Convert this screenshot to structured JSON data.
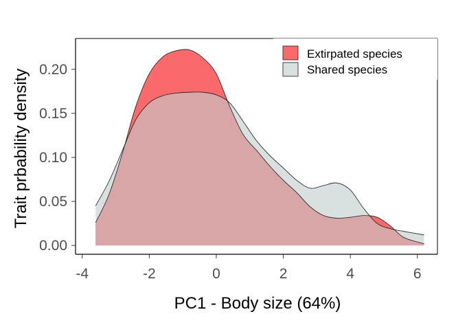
{
  "chart_data": {
    "type": "area",
    "title": "",
    "xlabel": "PC1 - Body size (64%)",
    "ylabel": "Trait prbability density",
    "xlim": [
      -4.2,
      6.6
    ],
    "ylim": [
      -0.01,
      0.235
    ],
    "x_ticks": [
      -4,
      -2,
      0,
      2,
      4,
      6
    ],
    "y_ticks": [
      0.0,
      0.05,
      0.1,
      0.15,
      0.2
    ],
    "x_tick_labels": [
      "-4",
      "-2",
      "0",
      "2",
      "4",
      "6"
    ],
    "y_tick_labels": [
      "0.00",
      "0.05",
      "0.10",
      "0.15",
      "0.20"
    ],
    "grid": false,
    "legend_position": "top-right",
    "series": [
      {
        "name": "Extirpated species",
        "fill": "#fb6a6a",
        "x": [
          -3.6,
          -3.2,
          -2.8,
          -2.4,
          -2.0,
          -1.6,
          -1.2,
          -0.8,
          -0.4,
          0.0,
          0.4,
          0.8,
          1.2,
          1.6,
          2.0,
          2.4,
          2.8,
          3.2,
          3.6,
          4.0,
          4.4,
          4.8,
          5.2,
          5.6,
          6.2
        ],
        "values": [
          0.026,
          0.058,
          0.105,
          0.158,
          0.195,
          0.214,
          0.221,
          0.222,
          0.213,
          0.195,
          0.158,
          0.126,
          0.108,
          0.09,
          0.074,
          0.06,
          0.044,
          0.034,
          0.031,
          0.032,
          0.034,
          0.032,
          0.022,
          0.009,
          0.002
        ]
      },
      {
        "name": "Shared species",
        "fill": "#d8e0e0",
        "x": [
          -3.6,
          -3.2,
          -2.8,
          -2.4,
          -2.0,
          -1.6,
          -1.2,
          -0.8,
          -0.4,
          0.0,
          0.4,
          0.8,
          1.2,
          1.6,
          2.0,
          2.4,
          2.8,
          3.2,
          3.6,
          4.0,
          4.4,
          4.8,
          5.2,
          5.6,
          6.2
        ],
        "values": [
          0.045,
          0.073,
          0.108,
          0.143,
          0.162,
          0.17,
          0.173,
          0.174,
          0.174,
          0.171,
          0.162,
          0.141,
          0.119,
          0.102,
          0.088,
          0.074,
          0.065,
          0.068,
          0.071,
          0.063,
          0.042,
          0.025,
          0.019,
          0.016,
          0.012
        ]
      }
    ],
    "overlap_fill": "#d8a6a7"
  }
}
